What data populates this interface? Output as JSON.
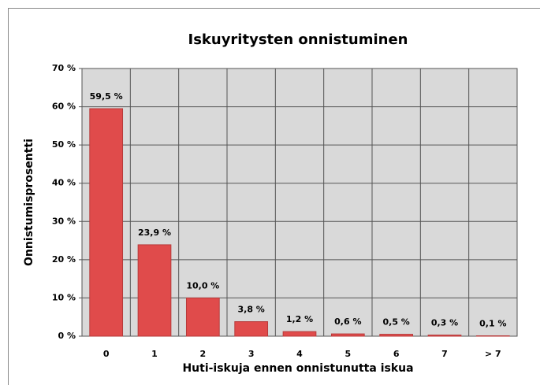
{
  "chart_data": {
    "type": "bar",
    "title": "Iskuyritysten onnistuminen",
    "x_label": "Huti-iskuja ennen onnistunutta iskua",
    "y_label": "Onnistumisprosentti",
    "categories": [
      "0",
      "1",
      "2",
      "3",
      "4",
      "5",
      "6",
      "7",
      "> 7"
    ],
    "values": [
      59.5,
      23.9,
      10.0,
      3.8,
      1.2,
      0.6,
      0.5,
      0.3,
      0.1
    ],
    "value_labels": [
      "59,5 %",
      "23,9 %",
      "10,0 %",
      "3,8 %",
      "1,2 %",
      "0,6 %",
      "0,5 %",
      "0,3 %",
      "0,1 %"
    ],
    "color": "#e04b4b",
    "ylim": [
      0,
      70
    ],
    "yticks": [
      {
        "value": 0,
        "label": "0 %"
      },
      {
        "value": 10,
        "label": "10 %"
      },
      {
        "value": 20,
        "label": "20 %"
      },
      {
        "value": 30,
        "label": "30 %"
      },
      {
        "value": 40,
        "label": "40 %"
      },
      {
        "value": 50,
        "label": "50 %"
      },
      {
        "value": 60,
        "label": "60 %"
      },
      {
        "value": 70,
        "label": "70 %"
      }
    ],
    "grid": true
  }
}
